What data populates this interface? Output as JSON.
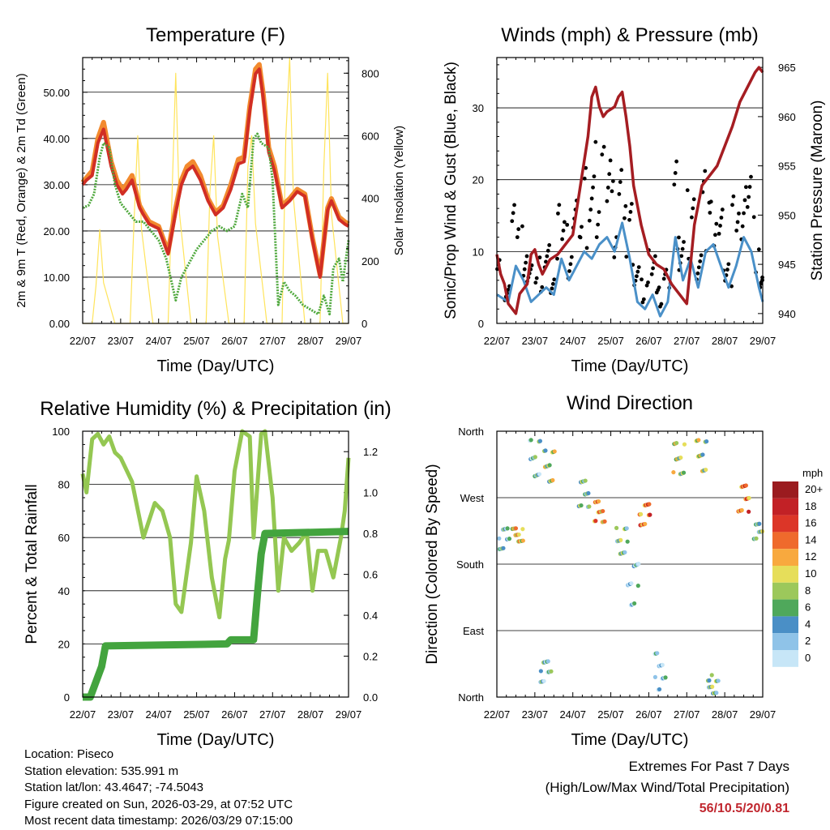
{
  "chart_data": [
    {
      "type": "line",
      "title": "Temperature (F)",
      "xlabel": "Time (Day/UTC)",
      "ylabel_left": "2m & 9m T (Red, Orange) & 2m Td (Green)",
      "ylabel_right": "Solar Insolation (Yellow)",
      "x_ticks": [
        "22/07",
        "23/07",
        "24/07",
        "25/07",
        "26/07",
        "27/07",
        "28/07",
        "29/07"
      ],
      "ylim_left": [
        0,
        57.5
      ],
      "yticks_left": [
        "0.00",
        "10.00",
        "20.00",
        "30.00",
        "40.00",
        "50.00"
      ],
      "ylim_right": [
        0,
        850
      ],
      "yticks_right": [
        "0",
        "200",
        "400",
        "600",
        "800"
      ],
      "series": [
        {
          "name": "9m T",
          "color": "#f28a2e",
          "x": [
            0,
            0.1,
            0.25,
            0.4,
            0.55,
            0.75,
            0.9,
            1.05,
            1.15,
            1.3,
            1.5,
            1.6,
            1.75,
            2.0,
            2.25,
            2.45,
            2.6,
            2.75,
            2.9,
            3.1,
            3.3,
            3.5,
            3.7,
            3.9,
            4.1,
            4.25,
            4.4,
            4.55,
            4.65,
            4.75,
            4.9,
            5.05,
            5.25,
            5.45,
            5.65,
            5.85,
            6.05,
            6.25,
            6.45,
            6.55,
            6.75,
            6.9,
            7.0
          ],
          "y": [
            30.5,
            31.5,
            33,
            40,
            43.5,
            35,
            31,
            29,
            30,
            32,
            25.5,
            24,
            22,
            21,
            15.5,
            25,
            31,
            34,
            35,
            32,
            27,
            24,
            25.5,
            30,
            35.5,
            36,
            47,
            55,
            56,
            50,
            38,
            34,
            25.5,
            27,
            29,
            28,
            18.5,
            10.5,
            25,
            27,
            23,
            22,
            21.5
          ]
        },
        {
          "name": "2m T",
          "color": "#d12e24",
          "x": [
            0,
            0.1,
            0.25,
            0.4,
            0.55,
            0.75,
            0.9,
            1.05,
            1.15,
            1.3,
            1.5,
            1.6,
            1.75,
            2.0,
            2.25,
            2.45,
            2.6,
            2.75,
            2.9,
            3.1,
            3.3,
            3.5,
            3.7,
            3.9,
            4.1,
            4.25,
            4.4,
            4.55,
            4.65,
            4.75,
            4.9,
            5.05,
            5.25,
            5.45,
            5.65,
            5.85,
            6.05,
            6.25,
            6.45,
            6.55,
            6.75,
            6.9,
            7.0
          ],
          "y": [
            30,
            31,
            32,
            39,
            42,
            34,
            30,
            28,
            29,
            31,
            25,
            23.5,
            21.5,
            20.5,
            15,
            24,
            30,
            33,
            34,
            31,
            26.5,
            23.5,
            25,
            29,
            34.5,
            35,
            46,
            54,
            55,
            49,
            37,
            33,
            25,
            26.5,
            28.5,
            27.5,
            18,
            10,
            24.5,
            26.5,
            22.5,
            21.5,
            21
          ]
        },
        {
          "name": "2m Td",
          "color": "#4fa83d",
          "x": [
            0,
            0.15,
            0.3,
            0.45,
            0.55,
            0.7,
            0.85,
            1.0,
            1.2,
            1.4,
            1.6,
            1.8,
            2.0,
            2.2,
            2.45,
            2.6,
            2.8,
            3.0,
            3.2,
            3.4,
            3.6,
            3.8,
            4.0,
            4.2,
            4.35,
            4.5,
            4.6,
            4.7,
            4.9,
            5.0,
            5.15,
            5.3,
            5.45,
            5.6,
            5.8,
            6.0,
            6.2,
            6.35,
            6.5,
            6.6,
            6.75,
            6.85,
            7.0
          ],
          "y": [
            25,
            25.5,
            28,
            36,
            39,
            38,
            30,
            26,
            24,
            22,
            22,
            20,
            18,
            14,
            5,
            10,
            13,
            16,
            18,
            20,
            21,
            20,
            21,
            28,
            25,
            40,
            41,
            39,
            38,
            31,
            4,
            9,
            7,
            6,
            4,
            3,
            2,
            6,
            2,
            12,
            14,
            9,
            18
          ]
        },
        {
          "name": "Solar Insolation",
          "color": "#ffe45c",
          "axis": "right",
          "x": [
            0.0,
            0.25,
            0.35,
            0.45,
            0.55,
            0.85,
            1.25,
            1.35,
            1.45,
            1.55,
            1.85,
            2.25,
            2.35,
            2.45,
            2.55,
            2.85,
            3.25,
            3.35,
            3.45,
            3.55,
            3.85,
            4.25,
            4.35,
            4.45,
            4.55,
            4.85,
            5.25,
            5.35,
            5.45,
            5.55,
            5.85,
            6.25,
            6.35,
            6.45,
            6.55,
            6.85,
            7.0
          ],
          "y": [
            0,
            0,
            120,
            300,
            130,
            0,
            0,
            320,
            600,
            300,
            0,
            0,
            400,
            800,
            350,
            0,
            0,
            420,
            600,
            280,
            0,
            0,
            500,
            600,
            320,
            0,
            0,
            600,
            850,
            400,
            0,
            0,
            500,
            800,
            350,
            0,
            0
          ]
        }
      ]
    },
    {
      "type": "line",
      "title": "Winds (mph) & Pressure (mb)",
      "xlabel": "Time (Day/UTC)",
      "ylabel_left": "Sonic/Prop Wind & Gust (Blue, Black)",
      "ylabel_right": "Station Pressure (Maroon)",
      "x_ticks": [
        "22/07",
        "23/07",
        "24/07",
        "25/07",
        "26/07",
        "27/07",
        "28/07",
        "29/07"
      ],
      "ylim_left": [
        0,
        37
      ],
      "yticks_left": [
        "0",
        "10",
        "20",
        "30"
      ],
      "ylim_right": [
        939,
        966
      ],
      "yticks_right": [
        "940",
        "945",
        "950",
        "955",
        "960",
        "965"
      ],
      "series": [
        {
          "name": "Wind",
          "color": "#4a90c8",
          "x": [
            0,
            0.3,
            0.5,
            0.7,
            0.9,
            1.1,
            1.3,
            1.5,
            1.7,
            1.9,
            2.1,
            2.3,
            2.5,
            2.7,
            2.9,
            3.1,
            3.3,
            3.5,
            3.7,
            3.9,
            4.1,
            4.3,
            4.5,
            4.7,
            4.9,
            5.1,
            5.3,
            5.5,
            5.7,
            5.9,
            6.1,
            6.3,
            6.5,
            6.7,
            6.9,
            7.0
          ],
          "y": [
            4,
            3,
            8,
            6,
            3,
            4,
            5,
            4,
            9,
            6,
            8,
            10,
            9,
            11,
            12,
            10,
            14,
            9,
            3,
            2,
            4,
            1,
            3,
            12,
            6,
            9,
            5,
            10,
            11,
            8,
            5,
            8,
            12,
            10,
            5,
            3
          ]
        },
        {
          "name": "Gust",
          "color": "#000000",
          "x": [
            0,
            0.3,
            0.5,
            0.7,
            0.9,
            1.1,
            1.3,
            1.5,
            1.7,
            1.9,
            2.1,
            2.3,
            2.5,
            2.7,
            2.9,
            3.1,
            3.3,
            3.5,
            3.7,
            3.9,
            4.1,
            4.3,
            4.5,
            4.7,
            4.9,
            5.1,
            5.3,
            5.5,
            5.7,
            5.9,
            6.1,
            6.3,
            6.5,
            6.7,
            6.9,
            7.0
          ],
          "y": [
            9,
            7,
            16,
            13,
            8,
            9,
            11,
            9,
            17,
            14,
            18,
            21,
            22,
            25,
            27,
            20,
            24,
            16,
            9,
            6,
            12,
            5,
            9,
            23,
            14,
            18,
            12,
            21,
            22,
            16,
            11,
            17,
            26,
            20,
            10,
            7
          ]
        },
        {
          "name": "Station Pressure",
          "color": "#a51d22",
          "axis": "right",
          "x": [
            0,
            0.1,
            0.2,
            0.3,
            0.5,
            0.6,
            0.8,
            0.9,
            1.0,
            1.1,
            1.2,
            1.4,
            1.6,
            1.8,
            2.0,
            2.2,
            2.4,
            2.5,
            2.6,
            2.7,
            2.8,
            2.9,
            3.1,
            3.2,
            3.3,
            3.4,
            3.5,
            3.6,
            3.8,
            4.0,
            4.2,
            4.4,
            4.6,
            4.8,
            5.0,
            5.1,
            5.2,
            5.4,
            5.6,
            5.8,
            6.0,
            6.2,
            6.4,
            6.6,
            6.8,
            6.9,
            7.0
          ],
          "y": [
            946,
            944,
            943,
            941,
            940,
            942,
            943,
            946,
            946.5,
            945,
            944,
            945.5,
            946,
            947,
            948,
            953,
            958,
            962,
            963,
            961,
            960,
            960.5,
            961,
            962,
            962.5,
            960,
            957,
            953,
            949,
            946,
            945,
            944.5,
            943,
            942,
            941,
            945,
            949,
            953,
            954,
            955,
            957,
            959,
            961.5,
            963,
            964.5,
            965,
            964.5
          ]
        }
      ]
    },
    {
      "type": "line",
      "title": "Relative Humidity (%) & Precipitation (in)",
      "xlabel": "Time (Day/UTC)",
      "ylabel_left": "Percent & Total Rainfall",
      "ylim_left": [
        0,
        100
      ],
      "yticks_left": [
        "0",
        "20",
        "40",
        "60",
        "80",
        "100"
      ],
      "ylim_right": [
        0,
        1.3
      ],
      "yticks_right": [
        "0.0",
        "0.2",
        "0.4",
        "0.6",
        "0.8",
        "1.0",
        "1.2"
      ],
      "x_ticks": [
        "22/07",
        "23/07",
        "24/07",
        "25/07",
        "26/07",
        "27/07",
        "28/07",
        "29/07"
      ],
      "series": [
        {
          "name": "Relative Humidity",
          "color": "#94c752",
          "x": [
            0,
            0.1,
            0.25,
            0.4,
            0.55,
            0.7,
            0.85,
            1.0,
            1.3,
            1.6,
            1.9,
            2.1,
            2.3,
            2.45,
            2.6,
            2.85,
            3.0,
            3.2,
            3.4,
            3.6,
            3.75,
            3.85,
            4.0,
            4.2,
            4.4,
            4.5,
            4.7,
            4.8,
            5.0,
            5.15,
            5.3,
            5.5,
            5.7,
            5.9,
            6.05,
            6.2,
            6.4,
            6.6,
            6.8,
            6.9,
            7.0
          ],
          "y": [
            84,
            77,
            97,
            99,
            95,
            98,
            92,
            90,
            81,
            60,
            73,
            70,
            60,
            35,
            32,
            58,
            83,
            70,
            45,
            30,
            52,
            59,
            85,
            100,
            98,
            60,
            99,
            100,
            75,
            40,
            60,
            55,
            58,
            62,
            40,
            55,
            55,
            45,
            60,
            70,
            90
          ]
        },
        {
          "name": "Total Precipitation",
          "color": "#43a43e",
          "axis": "right",
          "x": [
            0,
            0.2,
            0.3,
            0.4,
            0.5,
            0.6,
            3.8,
            3.9,
            4.5,
            4.6,
            4.7,
            4.8,
            7.0
          ],
          "y": [
            0,
            0,
            0.05,
            0.1,
            0.15,
            0.25,
            0.26,
            0.28,
            0.28,
            0.5,
            0.7,
            0.8,
            0.81
          ]
        }
      ]
    },
    {
      "type": "scatter",
      "title": "Wind Direction",
      "xlabel": "Time (Day/UTC)",
      "ylabel": "Direction (Colored By Speed)",
      "x_ticks": [
        "22/07",
        "23/07",
        "24/07",
        "25/07",
        "26/07",
        "27/07",
        "28/07",
        "29/07"
      ],
      "y_ticks": [
        "North",
        "East",
        "South",
        "West",
        "North"
      ],
      "ylim": [
        0,
        360
      ],
      "legend_title": "mph",
      "legend_labels": [
        "20+",
        "18",
        "16",
        "14",
        "12",
        "10",
        "8",
        "6",
        "4",
        "2",
        "0"
      ],
      "legend_colors": [
        "#9b1b1f",
        "#c22126",
        "#dc3628",
        "#ef6a2c",
        "#f8a93e",
        "#e6de5a",
        "#9cc85b",
        "#4fa85b",
        "#4a8fc6",
        "#8fc3e8",
        "#c7e6f7"
      ],
      "clusters": [
        {
          "x": 0.2,
          "dir_range": [
            200,
            240
          ],
          "speed": 4
        },
        {
          "x": 0.55,
          "dir_range": [
            205,
            230
          ],
          "speed": 10
        },
        {
          "x": 1.0,
          "dir_range": [
            290,
            360
          ],
          "speed": 4
        },
        {
          "x": 1.4,
          "dir_range": [
            290,
            350
          ],
          "speed": 8
        },
        {
          "x": 1.3,
          "dir_range": [
            10,
            50
          ],
          "speed": 4
        },
        {
          "x": 2.3,
          "dir_range": [
            250,
            300
          ],
          "speed": 6
        },
        {
          "x": 2.7,
          "dir_range": [
            235,
            275
          ],
          "speed": 12
        },
        {
          "x": 3.3,
          "dir_range": [
            180,
            230
          ],
          "speed": 6
        },
        {
          "x": 3.6,
          "dir_range": [
            110,
            190
          ],
          "speed": 2
        },
        {
          "x": 3.9,
          "dir_range": [
            230,
            270
          ],
          "speed": 14
        },
        {
          "x": 4.3,
          "dir_range": [
            10,
            60
          ],
          "speed": 2
        },
        {
          "x": 4.8,
          "dir_range": [
            290,
            350
          ],
          "speed": 8
        },
        {
          "x": 5.4,
          "dir_range": [
            300,
            360
          ],
          "speed": 8
        },
        {
          "x": 5.7,
          "dir_range": [
            5,
            30
          ],
          "speed": 6
        },
        {
          "x": 6.5,
          "dir_range": [
            240,
            290
          ],
          "speed": 14
        },
        {
          "x": 6.9,
          "dir_range": [
            210,
            240
          ],
          "speed": 6
        }
      ]
    }
  ],
  "info": {
    "location": "Location: Piseco",
    "elevation": "Station elevation: 535.991 m",
    "latlon": "Station lat/lon: 43.4647; -74.5043",
    "created": "Figure created on Sun, 2026-03-29, at 07:52 UTC",
    "recent": "Most recent data timestamp: 2026/03/29 07:15:00"
  },
  "extremes": {
    "line1": "Extremes For Past 7 Days",
    "line2": "(High/Low/Max Wind/Total Precipitation)",
    "values": "56/10.5/20/0.81"
  }
}
